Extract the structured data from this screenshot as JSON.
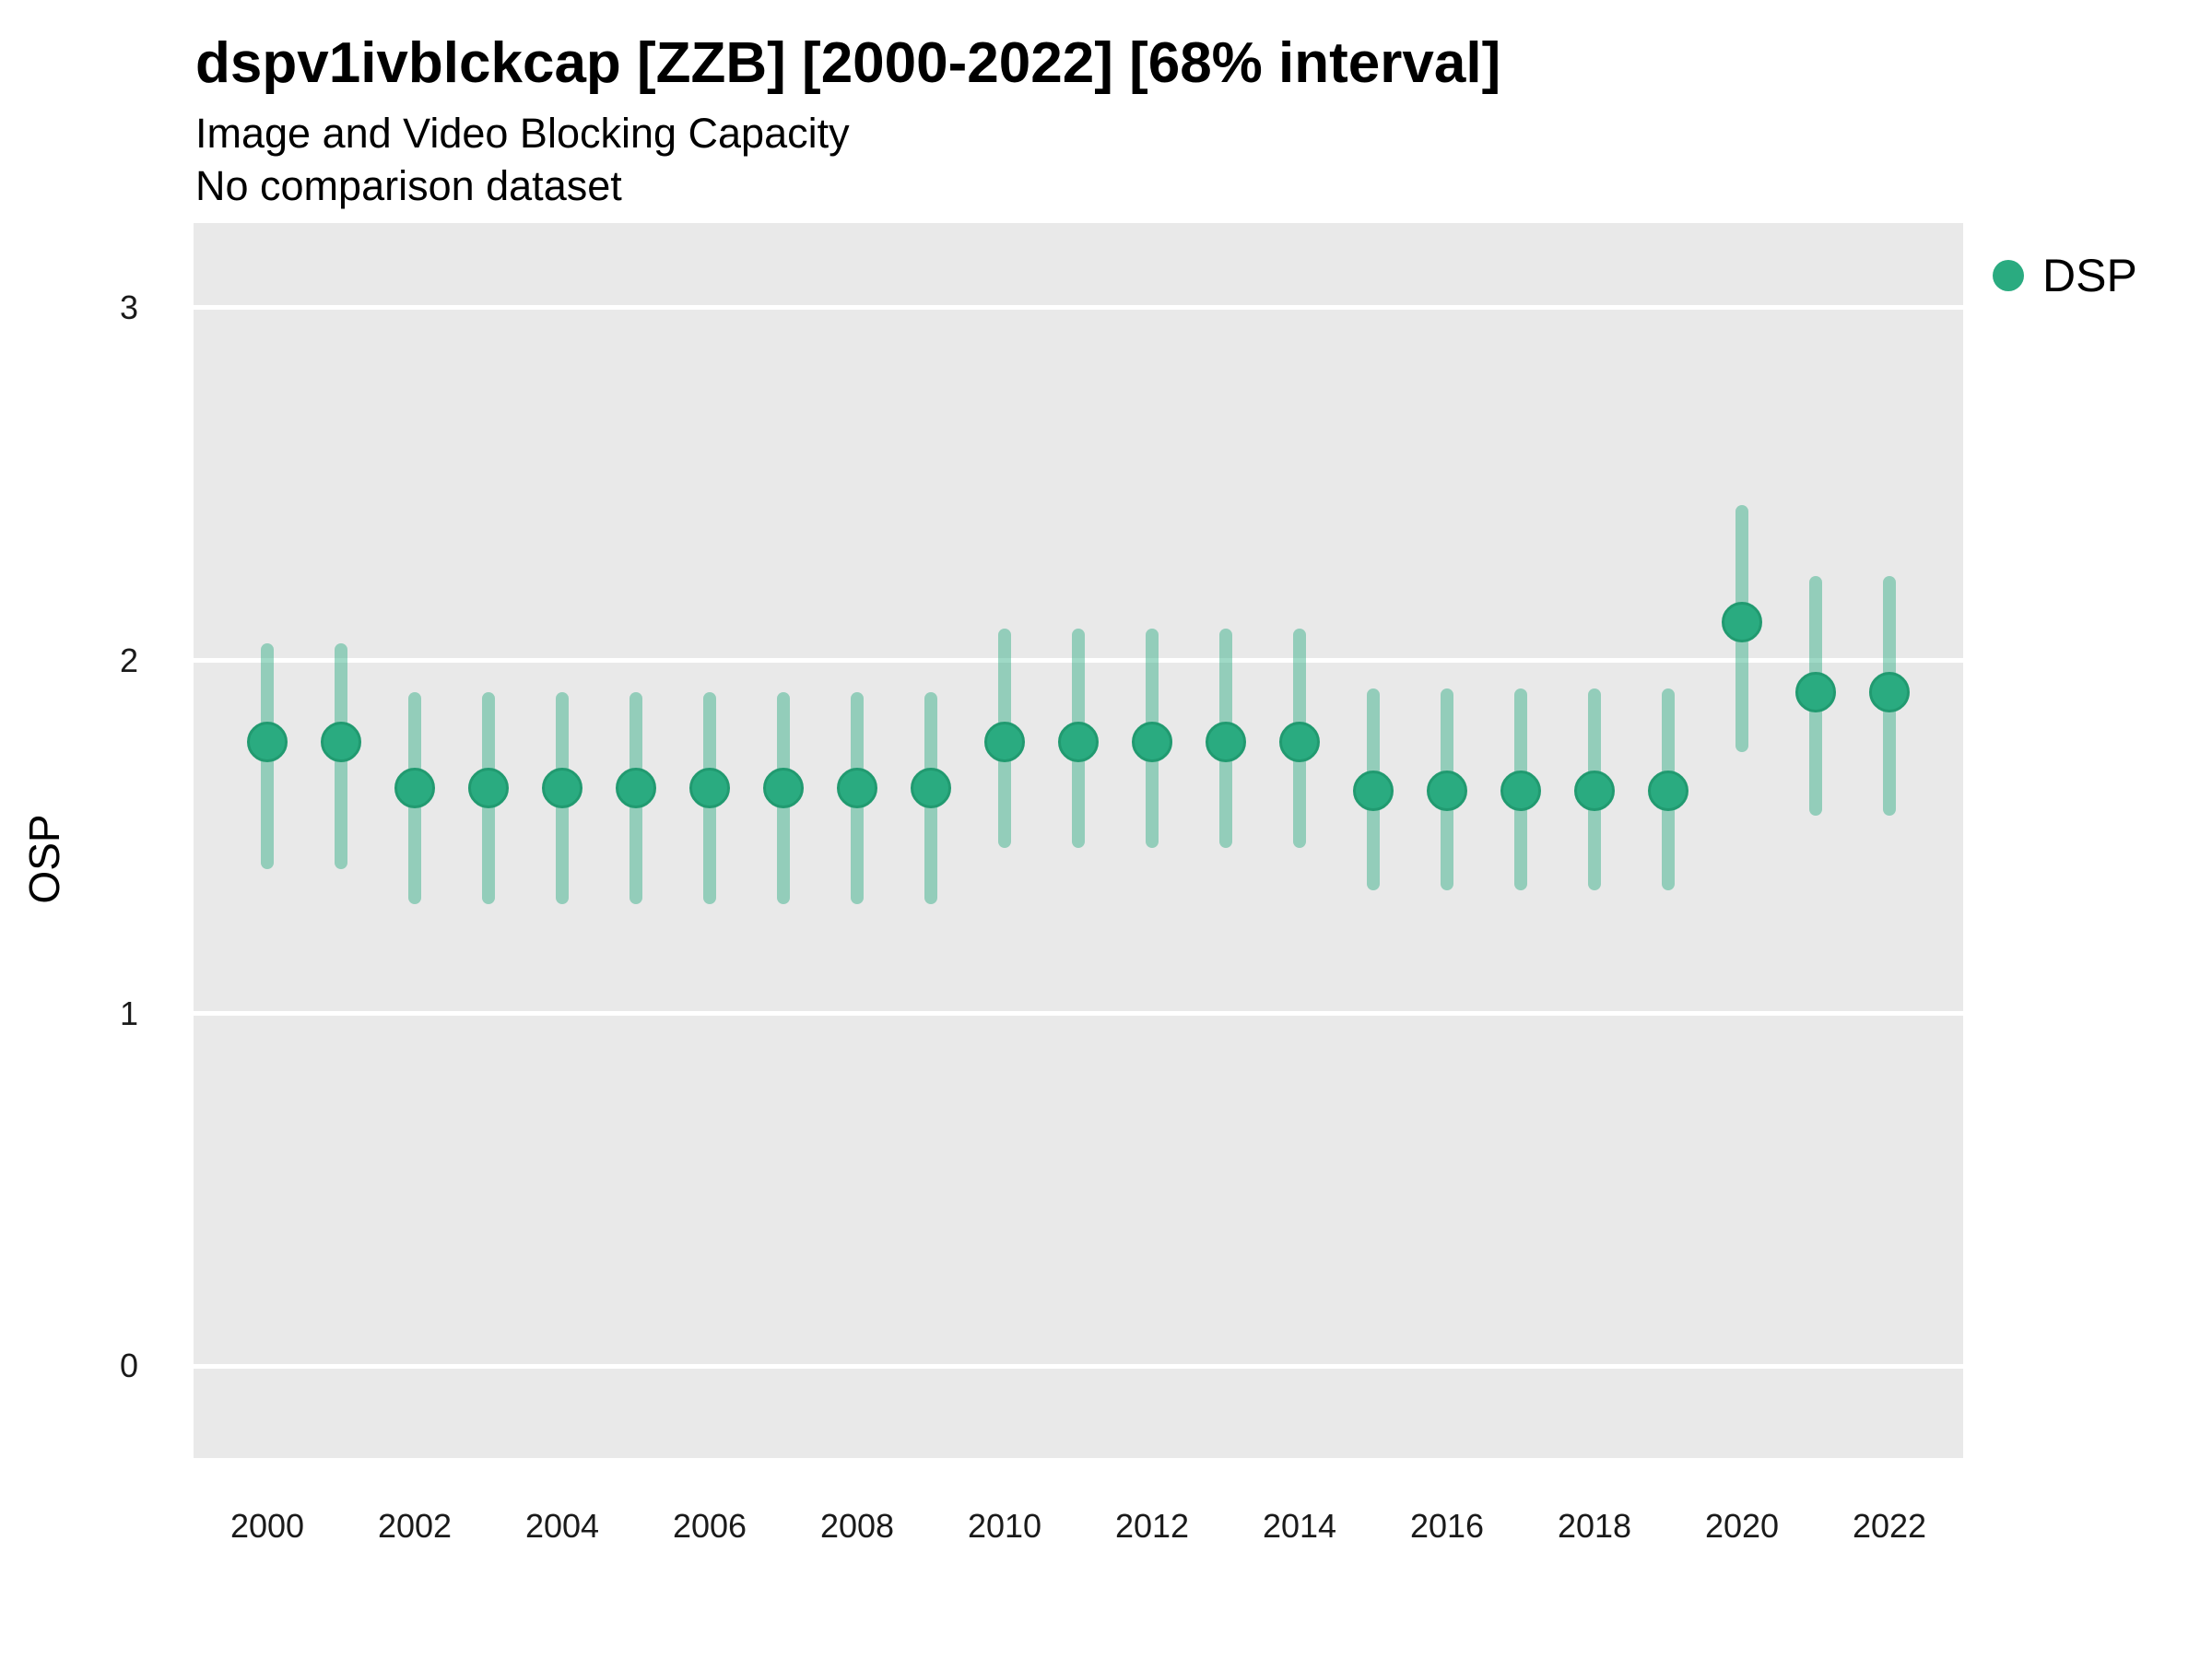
{
  "header": {
    "title": "dspv1ivblckcap [ZZB] [2000-2022] [68% interval]",
    "subtitle": "Image and Video Blocking Capacity",
    "comparison_note": "No comparison dataset"
  },
  "legend": {
    "position": "top-right",
    "items": [
      {
        "label": "DSP",
        "marker": "circle",
        "color": "#2aab80"
      }
    ]
  },
  "colors": {
    "point_fill": "#2aab80",
    "point_edge": "#219a70",
    "interval_bar": "rgba(42,171,128,0.45)",
    "panel_background": "#e9e9e9",
    "gridline": "#ffffff",
    "tick_text": "#1a1a1a",
    "title_text": "#000000"
  },
  "chart_data": {
    "type": "scatter",
    "subtype": "point-interval",
    "title": "dspv1ivblckcap [ZZB] [2000-2022] [68% interval]",
    "subtitle": "Image and Video Blocking Capacity",
    "note": "No comparison dataset",
    "interval_level": "68%",
    "xlabel": "",
    "ylabel": "OSP",
    "grid": "horizontal white gridlines on gray panel",
    "legend_position": "right-top",
    "xlim": [
      1999,
      2023
    ],
    "ylim": [
      -0.26,
      3.24
    ],
    "x_ticks": [
      2000,
      2002,
      2004,
      2006,
      2008,
      2010,
      2012,
      2014,
      2016,
      2018,
      2020,
      2022
    ],
    "y_ticks": [
      0,
      1,
      2,
      3
    ],
    "series": [
      {
        "name": "DSP",
        "x": [
          2000,
          2001,
          2002,
          2003,
          2004,
          2005,
          2006,
          2007,
          2008,
          2009,
          2010,
          2011,
          2012,
          2013,
          2014,
          2015,
          2016,
          2017,
          2018,
          2019,
          2020,
          2021,
          2022
        ],
        "mid": [
          1.77,
          1.77,
          1.64,
          1.64,
          1.64,
          1.64,
          1.64,
          1.64,
          1.64,
          1.64,
          1.77,
          1.77,
          1.77,
          1.77,
          1.77,
          1.63,
          1.63,
          1.63,
          1.63,
          1.63,
          2.11,
          1.91,
          1.91
        ],
        "lo": [
          1.41,
          1.41,
          1.31,
          1.31,
          1.31,
          1.31,
          1.31,
          1.31,
          1.31,
          1.31,
          1.47,
          1.47,
          1.47,
          1.47,
          1.47,
          1.35,
          1.35,
          1.35,
          1.35,
          1.35,
          1.74,
          1.56,
          1.56
        ],
        "hi": [
          2.05,
          2.05,
          1.91,
          1.91,
          1.91,
          1.91,
          1.91,
          1.91,
          1.91,
          1.91,
          2.09,
          2.09,
          2.09,
          2.09,
          2.09,
          1.92,
          1.92,
          1.92,
          1.92,
          1.92,
          2.44,
          2.24,
          2.24
        ]
      }
    ]
  }
}
